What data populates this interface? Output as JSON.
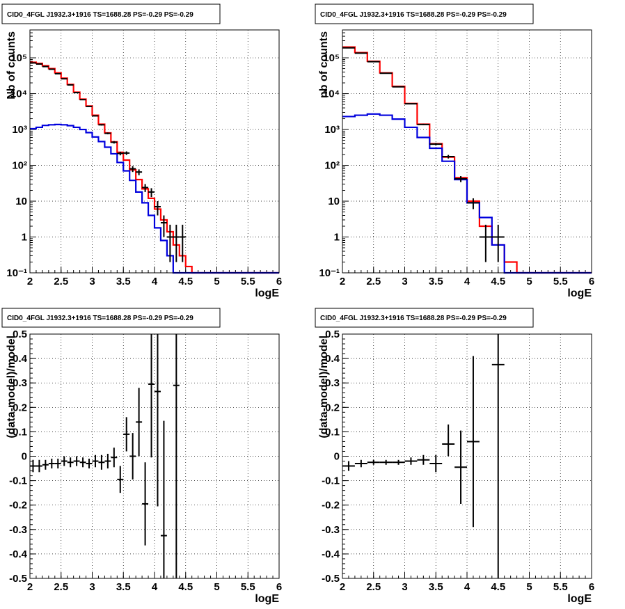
{
  "chart_data": [
    {
      "type": "line",
      "title": "CID0_4FGL J1932.3+1916 TS=1688.28 PS=-0.29 PS=-0.29",
      "xlabel": "logE",
      "ylabel": "Nb of counts",
      "log_y": true,
      "xlim": [
        2,
        6
      ],
      "ylim": [
        0.1,
        600000
      ],
      "grid": true,
      "x_ticks": [
        "2",
        "2.5",
        "3",
        "3.5",
        "4",
        "4.5",
        "5",
        "5.5",
        "6"
      ],
      "y_ticks": [
        {
          "value": 0.1,
          "label": "10⁻¹"
        },
        {
          "value": 1,
          "label": "1"
        },
        {
          "value": 10,
          "label": "10"
        },
        {
          "value": 100,
          "label": "10²"
        },
        {
          "value": 1000,
          "label": "10³"
        },
        {
          "value": 10000,
          "label": "10⁴"
        },
        {
          "value": 100000,
          "label": "10⁵"
        }
      ],
      "bin_width": 0.1,
      "series": [
        {
          "color": "#ff0000",
          "style": "hist",
          "x": [
            2.0,
            2.1,
            2.2,
            2.3,
            2.4,
            2.5,
            2.6,
            2.7,
            2.8,
            2.9,
            3.0,
            3.1,
            3.2,
            3.3,
            3.4,
            3.5,
            3.6,
            3.7,
            3.8,
            3.9,
            4.0,
            4.1,
            4.2,
            4.3,
            4.4,
            4.5,
            4.6,
            4.7,
            4.8,
            4.9,
            5.0,
            5.1,
            5.2,
            5.3,
            5.4,
            5.5,
            5.6,
            5.7,
            5.8,
            5.9
          ],
          "values": [
            75000,
            70000,
            60000,
            50000,
            38000,
            27000,
            18000,
            11000,
            7000,
            4500,
            2500,
            1400,
            800,
            450,
            230,
            140,
            75,
            40,
            22,
            12,
            6,
            3,
            1.4,
            0.6,
            0.3,
            0.15,
            0.1,
            0.1,
            0.1,
            0.1,
            0.1,
            0.1,
            0.1,
            0.1,
            0.1,
            0.1,
            0.1,
            0.1,
            0.1,
            0.1
          ]
        },
        {
          "color": "#0000dd",
          "style": "hist",
          "x": [
            2.0,
            2.1,
            2.2,
            2.3,
            2.4,
            2.5,
            2.6,
            2.7,
            2.8,
            2.9,
            3.0,
            3.1,
            3.2,
            3.3,
            3.4,
            3.5,
            3.6,
            3.7,
            3.8,
            3.9,
            4.0,
            4.1,
            4.2,
            4.3,
            4.4,
            4.5,
            4.6,
            4.7,
            4.8,
            4.9,
            5.0,
            5.1,
            5.2,
            5.3,
            5.4,
            5.5,
            5.6,
            5.7,
            5.8,
            5.9
          ],
          "values": [
            1050,
            1150,
            1300,
            1350,
            1380,
            1350,
            1280,
            1150,
            1000,
            820,
            620,
            460,
            320,
            210,
            120,
            70,
            38,
            18,
            9,
            4,
            1.8,
            0.8,
            0.3,
            0.1,
            0.1,
            0.1,
            0.1,
            0.1,
            0.1,
            0.1,
            0.1,
            0.1,
            0.1,
            0.1,
            0.1,
            0.1,
            0.1,
            0.1,
            0.1,
            0.1
          ]
        },
        {
          "color": "#000000",
          "style": "points",
          "x": [
            2.05,
            2.15,
            2.25,
            2.35,
            2.45,
            2.55,
            2.65,
            2.75,
            2.85,
            2.95,
            3.05,
            3.15,
            3.25,
            3.35,
            3.45,
            3.55,
            3.65,
            3.75,
            3.85,
            3.95,
            4.05,
            4.15,
            4.25,
            4.35,
            4.45
          ],
          "values": [
            72000,
            67000,
            57000,
            48000,
            36000,
            26000,
            17500,
            10700,
            6800,
            4400,
            2400,
            1350,
            780,
            440,
            215,
            220,
            80,
            65,
            24,
            18,
            7,
            2.5,
            1,
            1,
            1
          ],
          "err_low": [
            500,
            500,
            400,
            400,
            300,
            300,
            250,
            200,
            150,
            120,
            80,
            60,
            45,
            35,
            25,
            25,
            15,
            12,
            6,
            5,
            3,
            1.5,
            0.8,
            0.8,
            0.8
          ],
          "err_high": [
            500,
            500,
            400,
            400,
            300,
            300,
            250,
            200,
            150,
            120,
            80,
            60,
            45,
            35,
            25,
            25,
            15,
            12,
            6,
            5,
            3,
            1.5,
            1.2,
            1.2,
            1.2
          ]
        }
      ]
    },
    {
      "type": "line",
      "title": "CID0_4FGL J1932.3+1916 TS=1688.28 PS=-0.29 PS=-0.29",
      "xlabel": "logE",
      "ylabel": "nb of counts",
      "log_y": true,
      "xlim": [
        2,
        6
      ],
      "ylim": [
        0.1,
        600000
      ],
      "grid": true,
      "x_ticks": [
        "2",
        "2.5",
        "3",
        "3.5",
        "4",
        "4.5",
        "5",
        "5.5",
        "6"
      ],
      "y_ticks": [
        {
          "value": 0.1,
          "label": "10⁻¹"
        },
        {
          "value": 1,
          "label": "1"
        },
        {
          "value": 10,
          "label": "10"
        },
        {
          "value": 100,
          "label": "10²"
        },
        {
          "value": 1000,
          "label": "10³"
        },
        {
          "value": 10000,
          "label": "10⁴"
        },
        {
          "value": 100000,
          "label": "10⁵"
        }
      ],
      "bin_width": 0.2,
      "series": [
        {
          "color": "#ff0000",
          "style": "hist",
          "x": [
            2.0,
            2.2,
            2.4,
            2.6,
            2.8,
            3.0,
            3.2,
            3.4,
            3.6,
            3.8,
            4.0,
            4.2,
            4.4,
            4.6,
            4.8,
            5.0,
            5.2,
            5.4,
            5.6,
            5.8
          ],
          "values": [
            200000,
            140000,
            80000,
            38000,
            16000,
            5300,
            1400,
            400,
            170,
            45,
            10,
            2,
            0.6,
            0.2,
            0.1,
            0.1,
            0.1,
            0.1,
            0.1,
            0.1
          ]
        },
        {
          "color": "#0000dd",
          "style": "hist",
          "x": [
            2.0,
            2.2,
            2.4,
            2.6,
            2.8,
            3.0,
            3.2,
            3.4,
            3.6,
            3.8,
            4.0,
            4.2,
            4.4,
            4.6,
            4.8,
            5.0,
            5.2,
            5.4,
            5.6,
            5.8
          ],
          "values": [
            2300,
            2500,
            2700,
            2500,
            1950,
            1150,
            600,
            300,
            130,
            40,
            9,
            3.5,
            0.6,
            0.1,
            0.1,
            0.1,
            0.1,
            0.1,
            0.1,
            0.1
          ]
        },
        {
          "color": "#000000",
          "style": "points",
          "x": [
            2.1,
            2.3,
            2.5,
            2.7,
            2.9,
            3.1,
            3.3,
            3.5,
            3.7,
            3.9,
            4.1,
            4.3,
            4.5
          ],
          "values": [
            190000,
            135000,
            78000,
            37000,
            15500,
            5200,
            1380,
            390,
            175,
            42,
            9,
            1,
            1
          ],
          "err_low": [
            800,
            700,
            500,
            350,
            220,
            130,
            60,
            30,
            20,
            8,
            3,
            0.8,
            0.8
          ],
          "err_high": [
            800,
            700,
            500,
            350,
            220,
            130,
            60,
            30,
            20,
            8,
            3,
            1.2,
            1.2
          ]
        }
      ]
    },
    {
      "type": "scatter",
      "title": "CID0_4FGL J1932.3+1916 TS=1688.28 PS=-0.29 PS=-0.29",
      "xlabel": "logE",
      "ylabel": "(data-model)/model",
      "xlim": [
        2,
        6
      ],
      "ylim": [
        -0.5,
        0.5
      ],
      "grid": true,
      "x_ticks": [
        "2",
        "2.5",
        "3",
        "3.5",
        "4",
        "4.5",
        "5",
        "5.5",
        "6"
      ],
      "y_ticks": [
        "-0.5",
        "-0.4",
        "-0.3",
        "-0.2",
        "-0.1",
        "0",
        "0.1",
        "0.2",
        "0.3",
        "0.4",
        "0.5"
      ],
      "bin_width": 0.1,
      "series": [
        {
          "color": "#000000",
          "style": "points",
          "x": [
            2.05,
            2.15,
            2.25,
            2.35,
            2.45,
            2.55,
            2.65,
            2.75,
            2.85,
            2.95,
            3.05,
            3.15,
            3.25,
            3.35,
            3.45,
            3.55,
            3.65,
            3.75,
            3.85,
            3.95,
            4.05,
            4.15,
            4.35
          ],
          "values": [
            -0.04,
            -0.04,
            -0.035,
            -0.03,
            -0.03,
            -0.02,
            -0.025,
            -0.02,
            -0.025,
            -0.03,
            -0.02,
            -0.025,
            -0.02,
            -0.005,
            -0.095,
            0.09,
            0.0,
            0.14,
            -0.195,
            0.295,
            0.265,
            -0.325,
            0.29
          ],
          "err_low": [
            0.025,
            0.025,
            0.02,
            0.02,
            0.02,
            0.02,
            0.02,
            0.02,
            0.02,
            0.02,
            0.025,
            0.03,
            0.03,
            0.04,
            0.055,
            0.07,
            0.095,
            0.14,
            0.17,
            0.3,
            0.47,
            0.8,
            0.9
          ],
          "err_high": [
            0.025,
            0.025,
            0.02,
            0.02,
            0.02,
            0.02,
            0.02,
            0.02,
            0.02,
            0.02,
            0.025,
            0.03,
            0.03,
            0.04,
            0.055,
            0.07,
            0.095,
            0.14,
            0.17,
            0.3,
            0.47,
            0.47,
            0.4
          ]
        }
      ]
    },
    {
      "type": "scatter",
      "title": "CID0_4FGL J1932.3+1916 TS=1688.28 PS=-0.29 PS=-0.29",
      "xlabel": "logE",
      "ylabel": "(data-model)/model",
      "xlim": [
        2,
        6
      ],
      "ylim": [
        -0.5,
        0.5
      ],
      "grid": true,
      "x_ticks": [
        "2",
        "2.5",
        "3",
        "3.5",
        "4",
        "4.5",
        "5",
        "5.5",
        "6"
      ],
      "y_ticks": [
        "-0.5",
        "-0.4",
        "-0.3",
        "-0.2",
        "-0.1",
        "0",
        "0.1",
        "0.2",
        "0.3",
        "0.4",
        "0.5"
      ],
      "bin_width": 0.2,
      "series": [
        {
          "color": "#000000",
          "style": "points",
          "x": [
            2.1,
            2.3,
            2.5,
            2.7,
            2.9,
            3.1,
            3.3,
            3.5,
            3.7,
            3.9,
            4.1,
            4.5
          ],
          "values": [
            -0.04,
            -0.03,
            -0.025,
            -0.025,
            -0.025,
            -0.02,
            -0.015,
            -0.03,
            0.05,
            -0.045,
            0.06,
            0.375
          ],
          "err_low": [
            0.02,
            0.015,
            0.01,
            0.01,
            0.01,
            0.015,
            0.02,
            0.035,
            0.05,
            0.15,
            0.35,
            0.9
          ],
          "err_high": [
            0.02,
            0.015,
            0.01,
            0.01,
            0.01,
            0.015,
            0.02,
            0.035,
            0.08,
            0.15,
            0.35,
            0.15
          ]
        }
      ]
    }
  ]
}
